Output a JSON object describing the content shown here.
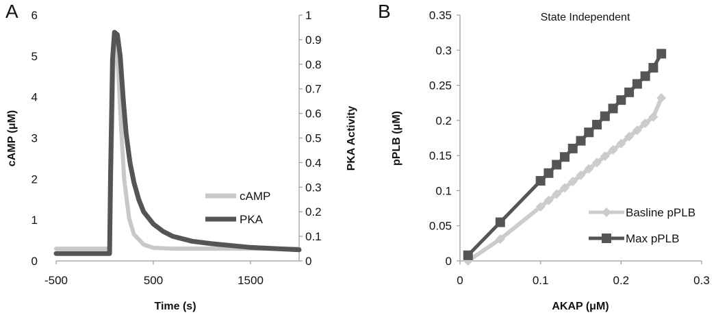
{
  "chart_data": [
    {
      "panel_label": "A",
      "type": "line",
      "title": "",
      "xlabel": "Time (s)",
      "ylabel": "cAMP (μM)",
      "y2label": "PKA Activity",
      "xlim": [
        -500,
        2000
      ],
      "ylim": [
        0,
        6
      ],
      "y2lim": [
        0,
        1
      ],
      "x_ticks": [
        "-500",
        "500",
        "1500"
      ],
      "x_tick_values": [
        -500,
        500,
        1500
      ],
      "y_ticks": [
        "0",
        "1",
        "2",
        "3",
        "4",
        "5",
        "6"
      ],
      "y2_ticks": [
        "0",
        "0.1",
        "0.2",
        "0.3",
        "0.4",
        "0.5",
        "0.6",
        "0.7",
        "0.8",
        "0.9",
        "1"
      ],
      "legend_position": "right",
      "series": [
        {
          "name": "cAMP",
          "axis": "left",
          "color": "#c8c8c8",
          "x": [
            -500,
            0,
            50,
            70,
            90,
            110,
            140,
            170,
            200,
            250,
            300,
            400,
            500,
            700,
            1000,
            1500,
            2000
          ],
          "y": [
            0.3,
            0.3,
            0.3,
            2.5,
            4.8,
            5.5,
            4.6,
            3.2,
            2.0,
            1.05,
            0.65,
            0.4,
            0.32,
            0.3,
            0.3,
            0.3,
            0.3
          ]
        },
        {
          "name": "PKA",
          "axis": "right",
          "color": "#555555",
          "x": [
            -500,
            0,
            50,
            60,
            80,
            100,
            130,
            160,
            190,
            220,
            260,
            300,
            350,
            400,
            500,
            600,
            700,
            900,
            1100,
            1500,
            2000
          ],
          "y": [
            0.03,
            0.03,
            0.03,
            0.35,
            0.82,
            0.93,
            0.92,
            0.83,
            0.66,
            0.52,
            0.4,
            0.32,
            0.25,
            0.2,
            0.15,
            0.12,
            0.1,
            0.08,
            0.07,
            0.055,
            0.045
          ]
        }
      ]
    },
    {
      "panel_label": "B",
      "type": "line",
      "title": "State Independent",
      "xlabel": "AKAP (μM)",
      "ylabel": "pPLB (μM)",
      "xlim": [
        0,
        0.3
      ],
      "ylim": [
        0,
        0.35
      ],
      "x_ticks": [
        "0",
        "0.1",
        "0.2",
        "0.3"
      ],
      "y_ticks": [
        "0",
        "0.05",
        "0.1",
        "0.15",
        "0.2",
        "0.25",
        "0.3",
        "0.35"
      ],
      "legend_position": "bottom-right",
      "series": [
        {
          "name": "Basline pPLB",
          "marker": "diamond",
          "color": "#cccccc",
          "x": [
            0.01,
            0.05,
            0.1,
            0.11,
            0.12,
            0.13,
            0.14,
            0.15,
            0.16,
            0.17,
            0.18,
            0.19,
            0.2,
            0.21,
            0.22,
            0.23,
            0.24,
            0.25
          ],
          "y": [
            0.0,
            0.031,
            0.077,
            0.086,
            0.095,
            0.104,
            0.113,
            0.122,
            0.131,
            0.14,
            0.149,
            0.158,
            0.167,
            0.177,
            0.186,
            0.196,
            0.205,
            0.232
          ]
        },
        {
          "name": "Max pPLB",
          "marker": "square",
          "color": "#555555",
          "x": [
            0.01,
            0.05,
            0.1,
            0.11,
            0.12,
            0.13,
            0.14,
            0.15,
            0.16,
            0.17,
            0.18,
            0.19,
            0.2,
            0.21,
            0.22,
            0.23,
            0.24,
            0.25
          ],
          "y": [
            0.008,
            0.055,
            0.114,
            0.125,
            0.137,
            0.148,
            0.16,
            0.171,
            0.183,
            0.194,
            0.206,
            0.217,
            0.229,
            0.24,
            0.252,
            0.263,
            0.275,
            0.295
          ]
        }
      ]
    }
  ]
}
